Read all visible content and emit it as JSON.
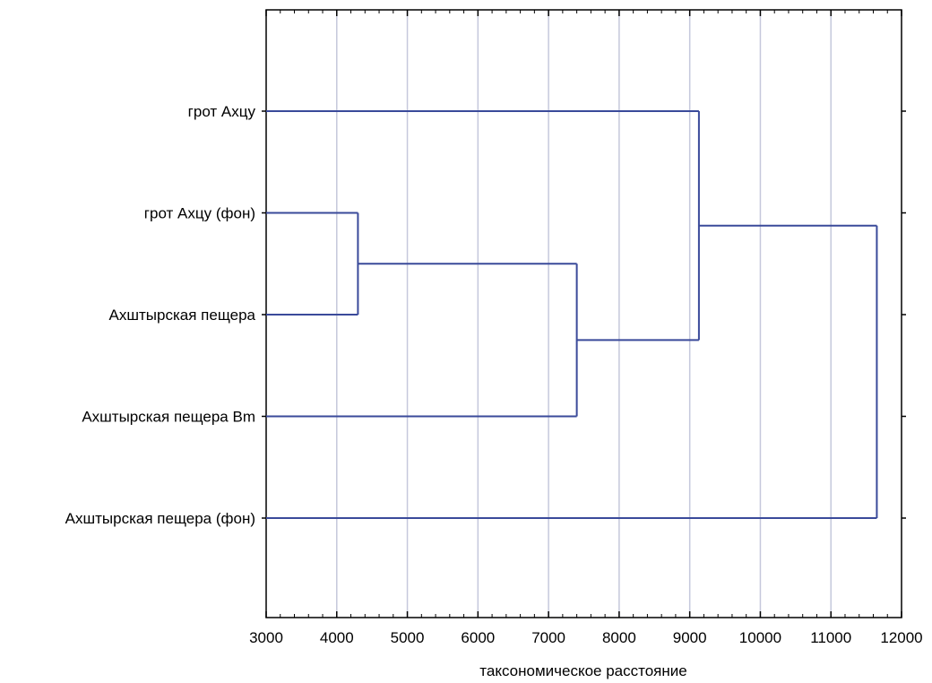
{
  "chart_data": {
    "type": "dendrogram",
    "xlabel": "таксономическое расстояние",
    "xlim": [
      3000,
      12000
    ],
    "x_ticks": [
      3000,
      4000,
      5000,
      6000,
      7000,
      8000,
      9000,
      10000,
      11000,
      12000
    ],
    "x_tick_labels": [
      "3000",
      "4000",
      "5000",
      "6000",
      "7000",
      "8000",
      "9000",
      "10000",
      "11000",
      "12000"
    ],
    "grid": "vertical",
    "leaves": [
      "грот Ахцу",
      "грот Ахцу (фон)",
      "Ахштырская пещера",
      "Ахштырская пещера Bm",
      "Ахштырская пещера (фон)"
    ],
    "merges": [
      {
        "id": "n1",
        "children": [
          "грот Ахцу (фон)",
          "Ахштырская пещера"
        ],
        "distance": 4300
      },
      {
        "id": "n2",
        "children": [
          "n1",
          "Ахштырская пещера Bm"
        ],
        "distance": 7400
      },
      {
        "id": "n3",
        "children": [
          "грот Ахцу",
          "n2"
        ],
        "distance": 9130
      },
      {
        "id": "n4",
        "children": [
          "n3",
          "Ахштырская пещера (фон)"
        ],
        "distance": 11650
      }
    ],
    "colors": {
      "branch": "#3a4a9a",
      "grid": "#c5c8dc",
      "axis": "#000000"
    }
  }
}
